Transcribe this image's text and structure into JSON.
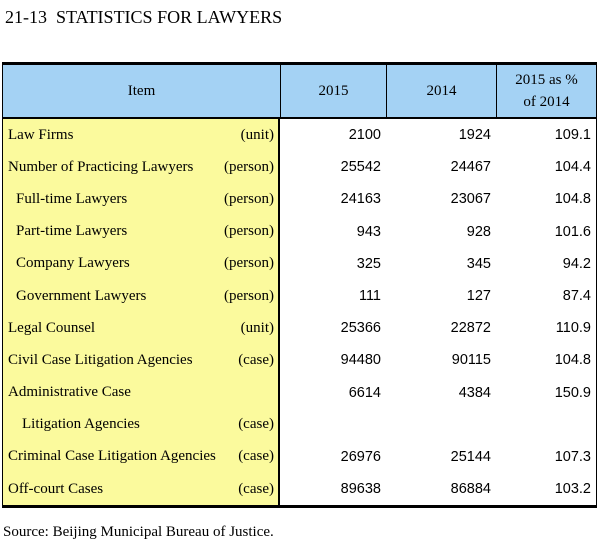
{
  "page": {
    "title": "21-13  STATISTICS FOR LAWYERS",
    "source": "Source: Beijing Municipal Bureau of Justice."
  },
  "colors": {
    "header_bg": "#A4D2F4",
    "item_column_bg": "#FBFA9D",
    "border": "#000000",
    "text": "#000000"
  },
  "table": {
    "headers": {
      "item": "Item",
      "y2015": "2015",
      "y2014": "2014",
      "ratio_line1": "2015 as %",
      "ratio_line2": "of 2014"
    },
    "rows": [
      {
        "item": "Law Firms",
        "unit": "(unit)",
        "v2015": "2100",
        "v2014": "1924",
        "ratio": "109.1"
      },
      {
        "item": "Number of Practicing Lawyers",
        "unit": "(person)",
        "v2015": "25542",
        "v2014": "24467",
        "ratio": "104.4"
      },
      {
        "item": "Full-time Lawyers",
        "unit": "(person)",
        "v2015": "24163",
        "v2014": "23067",
        "ratio": "104.8"
      },
      {
        "item": "Part-time Lawyers",
        "unit": "(person)",
        "v2015": "943",
        "v2014": "928",
        "ratio": "101.6"
      },
      {
        "item": "Company Lawyers",
        "unit": "(person)",
        "v2015": "325",
        "v2014": "345",
        "ratio": "94.2"
      },
      {
        "item": "Government Lawyers",
        "unit": "(person)",
        "v2015": "111",
        "v2014": "127",
        "ratio": "87.4"
      },
      {
        "item": "Legal Counsel",
        "unit": "(unit)",
        "v2015": "25366",
        "v2014": "22872",
        "ratio": "110.9"
      },
      {
        "item": "Civil Case Litigation Agencies",
        "unit": "(case)",
        "v2015": "94480",
        "v2014": "90115",
        "ratio": "104.8"
      },
      {
        "item": "Administrative Case",
        "unit": "",
        "v2015": "6614",
        "v2014": "4384",
        "ratio": "150.9"
      },
      {
        "item": "Litigation Agencies",
        "unit": "(case)",
        "v2015": "",
        "v2014": "",
        "ratio": ""
      },
      {
        "item": "Criminal Case Litigation Agencies",
        "unit": "(case)",
        "v2015": "26976",
        "v2014": "25144",
        "ratio": "107.3"
      },
      {
        "item": "Off-court Cases",
        "unit": "(case)",
        "v2015": "89638",
        "v2014": "86884",
        "ratio": "103.2"
      }
    ]
  }
}
